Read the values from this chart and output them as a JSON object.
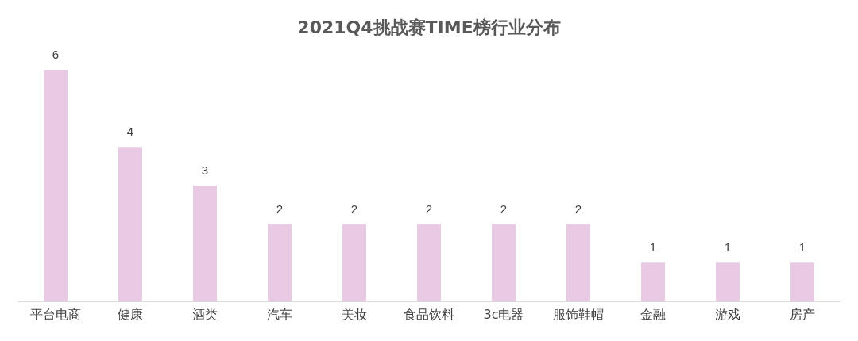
{
  "chart_data": {
    "type": "bar",
    "title": "2021Q4挑战赛TIME榜行业分布",
    "categories": [
      "平台电商",
      "健康",
      "酒类",
      "汽车",
      "美妆",
      "食品饮料",
      "3c电器",
      "服饰鞋帽",
      "金融",
      "游戏",
      "房产"
    ],
    "values": [
      6,
      4,
      3,
      2,
      2,
      2,
      2,
      2,
      1,
      1,
      1
    ],
    "color": "#e8cae4",
    "data_labels": true
  }
}
